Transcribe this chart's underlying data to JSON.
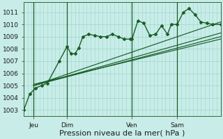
{
  "bg_color": "#c8ede8",
  "grid_color": "#a0d4cc",
  "line_color": "#1a5c28",
  "xlabel": "Pression niveau de la mer( hPa )",
  "xlabel_fontsize": 8,
  "yticks": [
    1003,
    1004,
    1005,
    1006,
    1007,
    1008,
    1009,
    1010,
    1011
  ],
  "ylim": [
    1002.5,
    1011.8
  ],
  "xlim": [
    0,
    100
  ],
  "xtick_labels": [
    "Jeu",
    "Dim",
    "Ven",
    "Sam"
  ],
  "xtick_pos": [
    5,
    22,
    55,
    78
  ],
  "xvlines": [
    5,
    22,
    55,
    78
  ],
  "series1_x": [
    0,
    3,
    6,
    9,
    12,
    18,
    22,
    24,
    26,
    28,
    30,
    33,
    36,
    39,
    42,
    45,
    48,
    51,
    54,
    55,
    58,
    61,
    64,
    67,
    70,
    73,
    75,
    78,
    81,
    84,
    87,
    90,
    93,
    96,
    100
  ],
  "series1_y": [
    1003.0,
    1004.3,
    1004.8,
    1005.0,
    1005.2,
    1007.0,
    1008.2,
    1007.6,
    1007.6,
    1008.1,
    1009.0,
    1009.2,
    1009.1,
    1009.0,
    1009.0,
    1009.2,
    1009.0,
    1008.8,
    1008.8,
    1008.8,
    1010.3,
    1010.1,
    1009.1,
    1009.2,
    1009.9,
    1009.2,
    1010.0,
    1010.0,
    1011.0,
    1011.3,
    1010.8,
    1010.2,
    1010.1,
    1010.0,
    1010.0
  ],
  "trend_lines": [
    {
      "x": [
        5,
        100
      ],
      "y": [
        1005.0,
        1010.2
      ]
    },
    {
      "x": [
        5,
        100
      ],
      "y": [
        1005.0,
        1009.3
      ]
    },
    {
      "x": [
        5,
        100
      ],
      "y": [
        1005.1,
        1008.8
      ]
    },
    {
      "x": [
        5,
        100
      ],
      "y": [
        1005.0,
        1009.0
      ]
    }
  ]
}
